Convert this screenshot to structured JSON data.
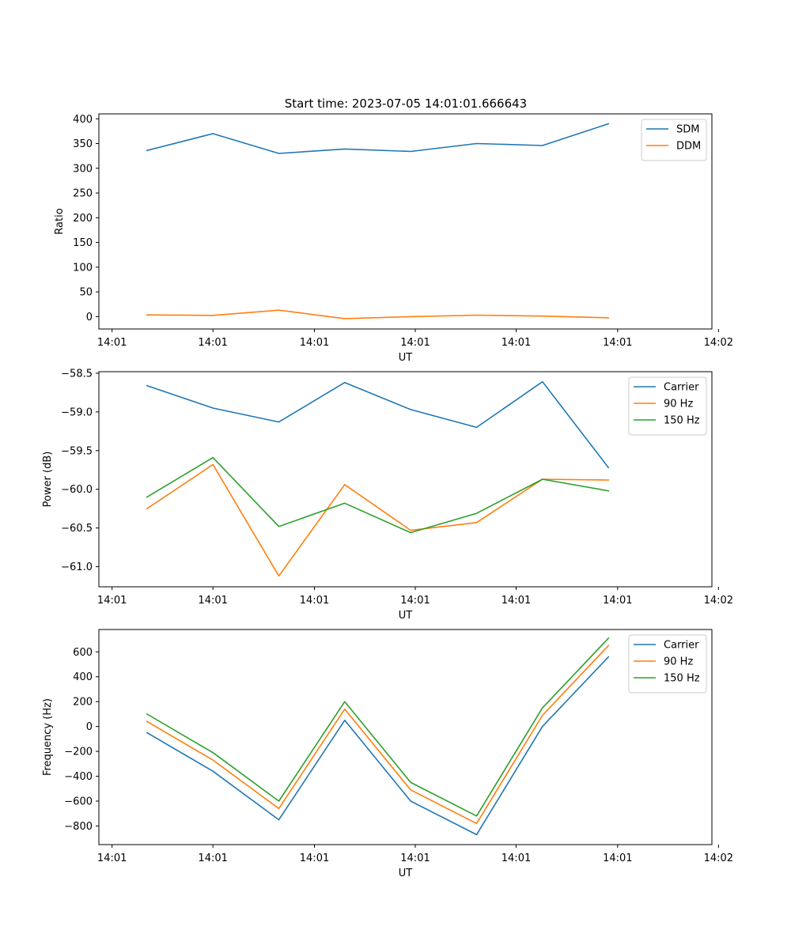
{
  "figure": {
    "title": "Start time: 2023-07-05 14:01:01.666643"
  },
  "chart_data": [
    {
      "type": "line",
      "xlabel": "UT",
      "ylabel": "Ratio",
      "x_tick_labels": [
        "14:01",
        "14:01",
        "14:01",
        "14:01",
        "14:01",
        "14:01",
        "14:02"
      ],
      "xlim": [
        0,
        9.3
      ],
      "ylim": [
        -25,
        410
      ],
      "y_ticks": [
        0,
        50,
        100,
        150,
        200,
        250,
        300,
        350,
        400
      ],
      "y_tick_labels": [
        "0",
        "50",
        "100",
        "150",
        "200",
        "250",
        "300",
        "350",
        "400"
      ],
      "legend_position": "top-right",
      "x": [
        0.73,
        1.73,
        2.73,
        3.73,
        4.73,
        5.73,
        6.73,
        7.73
      ],
      "series": [
        {
          "name": "SDM",
          "color": "#1f77b4",
          "values": [
            336,
            370,
            330,
            339,
            334,
            350,
            346,
            390
          ]
        },
        {
          "name": "DDM",
          "color": "#ff7f0e",
          "values": [
            3.5,
            2.5,
            13,
            -4,
            0,
            3,
            1,
            -2.5
          ]
        }
      ]
    },
    {
      "type": "line",
      "xlabel": "UT",
      "ylabel": "Power (dB)",
      "x_tick_labels": [
        "14:01",
        "14:01",
        "14:01",
        "14:01",
        "14:01",
        "14:01",
        "14:02"
      ],
      "xlim": [
        0,
        9.3
      ],
      "ylim": [
        -61.26,
        -58.48
      ],
      "y_ticks": [
        -61.0,
        -60.5,
        -60.0,
        -59.5,
        -59.0,
        -58.5
      ],
      "y_tick_labels": [
        "−61.0",
        "−60.5",
        "−60.0",
        "−59.5",
        "−59.0",
        "−58.5"
      ],
      "legend_position": "top-right",
      "x": [
        0.73,
        1.73,
        2.73,
        3.73,
        4.73,
        5.73,
        6.73,
        7.73
      ],
      "series": [
        {
          "name": "Carrier",
          "color": "#1f77b4",
          "values": [
            -58.66,
            -58.95,
            -59.13,
            -58.62,
            -58.97,
            -59.2,
            -58.61,
            -59.72
          ]
        },
        {
          "name": "90 Hz",
          "color": "#ff7f0e",
          "values": [
            -60.25,
            -59.68,
            -61.12,
            -59.94,
            -60.53,
            -60.43,
            -59.87,
            -59.88
          ]
        },
        {
          "name": "150 Hz",
          "color": "#2ca02c",
          "values": [
            -60.1,
            -59.59,
            -60.48,
            -60.18,
            -60.56,
            -60.31,
            -59.87,
            -60.02
          ]
        }
      ]
    },
    {
      "type": "line",
      "xlabel": "UT",
      "ylabel": "Frequency (Hz)",
      "x_tick_labels": [
        "14:01",
        "14:01",
        "14:01",
        "14:01",
        "14:01",
        "14:01",
        "14:02"
      ],
      "xlim": [
        0,
        9.3
      ],
      "ylim": [
        -950,
        780
      ],
      "y_ticks": [
        -800,
        -600,
        -400,
        -200,
        0,
        200,
        400,
        600
      ],
      "y_tick_labels": [
        "−800",
        "−600",
        "−400",
        "−200",
        "0",
        "200",
        "400",
        "600"
      ],
      "legend_position": "top-right",
      "x": [
        0.73,
        1.73,
        2.73,
        3.73,
        4.73,
        5.73,
        6.73,
        7.73
      ],
      "series": [
        {
          "name": "Carrier",
          "color": "#1f77b4",
          "values": [
            -50,
            -360,
            -750,
            50,
            -600,
            -870,
            0,
            560
          ]
        },
        {
          "name": "90 Hz",
          "color": "#ff7f0e",
          "values": [
            40,
            -270,
            -660,
            140,
            -510,
            -780,
            90,
            650
          ]
        },
        {
          "name": "150 Hz",
          "color": "#2ca02c",
          "values": [
            100,
            -210,
            -600,
            200,
            -450,
            -720,
            150,
            710
          ]
        }
      ]
    }
  ]
}
